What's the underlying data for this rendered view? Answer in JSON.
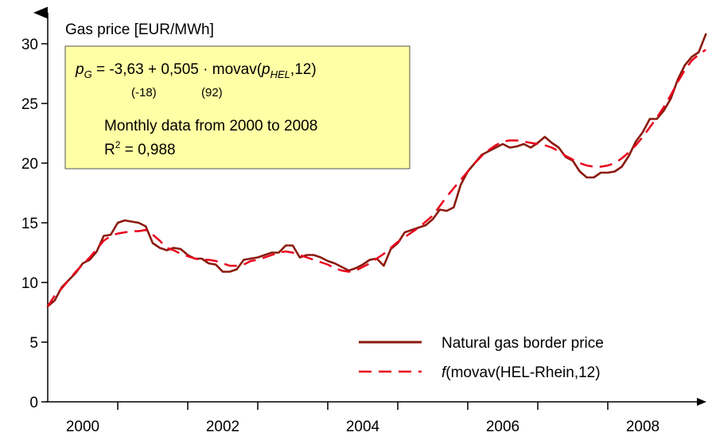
{
  "chart_data": {
    "type": "line",
    "title": "",
    "ylabel": "Gas price [EUR/MWh]",
    "xlabel": "",
    "ylim": [
      0,
      32
    ],
    "xlim": [
      2000.0,
      2009.1
    ],
    "y_ticks": [
      0,
      5,
      10,
      15,
      20,
      25,
      30
    ],
    "x_tick_labels": [
      "2000",
      "2002",
      "2004",
      "2006",
      "2008"
    ],
    "x_tick_label_positions": [
      2000.5,
      2002.5,
      2004.5,
      2006.5,
      2008.5
    ],
    "x_minor_ticks": [
      2001,
      2002,
      2003,
      2004,
      2005,
      2006,
      2007,
      2008
    ],
    "grid": false,
    "legend_position": "bottom-right",
    "annotation": {
      "formula_lhs": "p",
      "formula_lhs_sub": "G",
      "formula_mid": " = -3,63 + 0,505 · movav(",
      "formula_p": "p",
      "formula_p_sub": "HEL",
      "formula_end": ",12)",
      "tstat_1": "(-18)",
      "tstat_2": "(92)",
      "line_1": "Monthly data from 2000 to 2008",
      "r2_base": "R",
      "r2_exp": "2",
      "r2_value": " = 0,988"
    },
    "series": [
      {
        "name": "Natural gas border price",
        "legend_label": "Natural gas border price",
        "color": "#8b1a0e",
        "style": "solid",
        "points": [
          [
            2000.0,
            8.0
          ],
          [
            2000.1,
            8.5
          ],
          [
            2000.2,
            9.6
          ],
          [
            2000.3,
            10.2
          ],
          [
            2000.4,
            10.8
          ],
          [
            2000.5,
            11.6
          ],
          [
            2000.6,
            11.9
          ],
          [
            2000.7,
            12.6
          ],
          [
            2000.8,
            13.9
          ],
          [
            2000.9,
            14.0
          ],
          [
            2001.0,
            15.0
          ],
          [
            2001.1,
            15.2
          ],
          [
            2001.2,
            15.1
          ],
          [
            2001.3,
            15.0
          ],
          [
            2001.4,
            14.7
          ],
          [
            2001.5,
            13.3
          ],
          [
            2001.6,
            12.9
          ],
          [
            2001.7,
            12.7
          ],
          [
            2001.8,
            12.9
          ],
          [
            2001.9,
            12.8
          ],
          [
            2002.0,
            12.3
          ],
          [
            2002.1,
            12.0
          ],
          [
            2002.2,
            12.0
          ],
          [
            2002.3,
            11.6
          ],
          [
            2002.4,
            11.5
          ],
          [
            2002.5,
            10.9
          ],
          [
            2002.6,
            10.9
          ],
          [
            2002.7,
            11.1
          ],
          [
            2002.8,
            11.9
          ],
          [
            2002.9,
            12.0
          ],
          [
            2003.0,
            12.1
          ],
          [
            2003.1,
            12.3
          ],
          [
            2003.2,
            12.5
          ],
          [
            2003.3,
            12.5
          ],
          [
            2003.4,
            13.1
          ],
          [
            2003.5,
            13.1
          ],
          [
            2003.6,
            12.1
          ],
          [
            2003.7,
            12.3
          ],
          [
            2003.8,
            12.3
          ],
          [
            2003.9,
            12.1
          ],
          [
            2004.0,
            11.8
          ],
          [
            2004.1,
            11.6
          ],
          [
            2004.2,
            11.3
          ],
          [
            2004.3,
            11.0
          ],
          [
            2004.4,
            11.2
          ],
          [
            2004.5,
            11.5
          ],
          [
            2004.6,
            11.9
          ],
          [
            2004.7,
            12.0
          ],
          [
            2004.8,
            11.4
          ],
          [
            2004.9,
            12.8
          ],
          [
            2005.0,
            13.3
          ],
          [
            2005.1,
            14.2
          ],
          [
            2005.2,
            14.4
          ],
          [
            2005.3,
            14.6
          ],
          [
            2005.4,
            14.8
          ],
          [
            2005.5,
            15.3
          ],
          [
            2005.6,
            16.1
          ],
          [
            2005.7,
            16.0
          ],
          [
            2005.8,
            16.3
          ],
          [
            2005.9,
            18.2
          ],
          [
            2006.0,
            19.3
          ],
          [
            2006.1,
            20.0
          ],
          [
            2006.2,
            20.7
          ],
          [
            2006.3,
            21.0
          ],
          [
            2006.4,
            21.3
          ],
          [
            2006.5,
            21.6
          ],
          [
            2006.6,
            21.3
          ],
          [
            2006.7,
            21.4
          ],
          [
            2006.8,
            21.6
          ],
          [
            2006.9,
            21.3
          ],
          [
            2007.0,
            21.7
          ],
          [
            2007.1,
            22.2
          ],
          [
            2007.2,
            21.7
          ],
          [
            2007.3,
            21.3
          ],
          [
            2007.4,
            20.5
          ],
          [
            2007.5,
            20.2
          ],
          [
            2007.6,
            19.3
          ],
          [
            2007.7,
            18.8
          ],
          [
            2007.8,
            18.8
          ],
          [
            2007.9,
            19.2
          ],
          [
            2008.0,
            19.2
          ],
          [
            2008.1,
            19.3
          ],
          [
            2008.2,
            19.7
          ],
          [
            2008.3,
            20.6
          ],
          [
            2008.4,
            21.8
          ],
          [
            2008.5,
            22.6
          ],
          [
            2008.6,
            23.7
          ],
          [
            2008.7,
            23.7
          ],
          [
            2008.8,
            24.4
          ],
          [
            2008.9,
            25.4
          ],
          [
            2009.0,
            27.0
          ],
          [
            2009.1,
            28.2
          ],
          [
            2009.2,
            28.9
          ],
          [
            2009.3,
            29.3
          ],
          [
            2009.4,
            30.8
          ]
        ]
      },
      {
        "name": "f(movav(HEL-Rhein,12)",
        "legend_label_italic": "f",
        "legend_label_rest": "(movav(HEL-Rhein,12)",
        "color": "#e8001c",
        "style": "dashed",
        "points": [
          [
            2000.0,
            8.0
          ],
          [
            2000.1,
            8.9
          ],
          [
            2000.2,
            9.5
          ],
          [
            2000.3,
            10.2
          ],
          [
            2000.4,
            10.9
          ],
          [
            2000.5,
            11.5
          ],
          [
            2000.6,
            12.1
          ],
          [
            2000.7,
            12.8
          ],
          [
            2000.8,
            13.5
          ],
          [
            2000.9,
            13.9
          ],
          [
            2001.0,
            14.1
          ],
          [
            2001.1,
            14.2
          ],
          [
            2001.2,
            14.3
          ],
          [
            2001.3,
            14.3
          ],
          [
            2001.4,
            14.4
          ],
          [
            2001.5,
            14.0
          ],
          [
            2001.6,
            13.5
          ],
          [
            2001.7,
            12.9
          ],
          [
            2001.8,
            12.7
          ],
          [
            2001.9,
            12.4
          ],
          [
            2002.0,
            12.2
          ],
          [
            2002.1,
            12.0
          ],
          [
            2002.2,
            11.9
          ],
          [
            2002.3,
            11.9
          ],
          [
            2002.4,
            11.8
          ],
          [
            2002.5,
            11.6
          ],
          [
            2002.6,
            11.4
          ],
          [
            2002.7,
            11.4
          ],
          [
            2002.8,
            11.5
          ],
          [
            2002.9,
            11.8
          ],
          [
            2003.0,
            11.9
          ],
          [
            2003.1,
            12.1
          ],
          [
            2003.2,
            12.3
          ],
          [
            2003.3,
            12.5
          ],
          [
            2003.4,
            12.6
          ],
          [
            2003.5,
            12.5
          ],
          [
            2003.6,
            12.3
          ],
          [
            2003.7,
            12.1
          ],
          [
            2003.8,
            11.9
          ],
          [
            2003.9,
            11.7
          ],
          [
            2004.0,
            11.5
          ],
          [
            2004.1,
            11.2
          ],
          [
            2004.2,
            11.0
          ],
          [
            2004.3,
            10.9
          ],
          [
            2004.4,
            11.0
          ],
          [
            2004.5,
            11.3
          ],
          [
            2004.6,
            11.6
          ],
          [
            2004.7,
            12.0
          ],
          [
            2004.8,
            12.4
          ],
          [
            2004.9,
            12.9
          ],
          [
            2005.0,
            13.4
          ],
          [
            2005.1,
            13.8
          ],
          [
            2005.2,
            14.2
          ],
          [
            2005.3,
            14.6
          ],
          [
            2005.4,
            15.1
          ],
          [
            2005.5,
            15.6
          ],
          [
            2005.6,
            16.4
          ],
          [
            2005.7,
            17.2
          ],
          [
            2005.8,
            17.9
          ],
          [
            2005.9,
            18.6
          ],
          [
            2006.0,
            19.3
          ],
          [
            2006.1,
            20.0
          ],
          [
            2006.2,
            20.6
          ],
          [
            2006.3,
            21.1
          ],
          [
            2006.4,
            21.5
          ],
          [
            2006.5,
            21.8
          ],
          [
            2006.6,
            21.9
          ],
          [
            2006.7,
            21.9
          ],
          [
            2006.8,
            21.8
          ],
          [
            2006.9,
            21.7
          ],
          [
            2007.0,
            21.6
          ],
          [
            2007.1,
            21.5
          ],
          [
            2007.2,
            21.3
          ],
          [
            2007.3,
            21.0
          ],
          [
            2007.4,
            20.6
          ],
          [
            2007.5,
            20.3
          ],
          [
            2007.6,
            20.0
          ],
          [
            2007.7,
            19.8
          ],
          [
            2007.8,
            19.7
          ],
          [
            2007.9,
            19.7
          ],
          [
            2008.0,
            19.8
          ],
          [
            2008.1,
            20.0
          ],
          [
            2008.2,
            20.4
          ],
          [
            2008.3,
            20.9
          ],
          [
            2008.4,
            21.5
          ],
          [
            2008.5,
            22.2
          ],
          [
            2008.6,
            23.0
          ],
          [
            2008.7,
            23.8
          ],
          [
            2008.8,
            24.7
          ],
          [
            2008.9,
            25.7
          ],
          [
            2009.0,
            26.8
          ],
          [
            2009.1,
            27.8
          ],
          [
            2009.2,
            28.6
          ],
          [
            2009.3,
            29.1
          ],
          [
            2009.4,
            29.5
          ]
        ]
      }
    ]
  }
}
